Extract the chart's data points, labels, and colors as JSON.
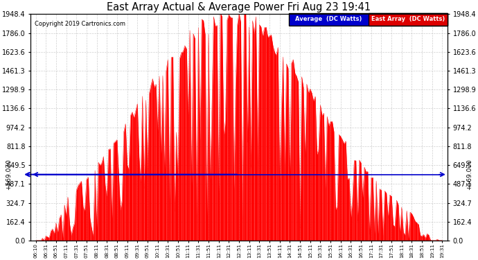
{
  "title": "East Array Actual & Average Power Fri Aug 23 19:41",
  "copyright": "Copyright 2019 Cartronics.com",
  "legend_labels": [
    "Average  (DC Watts)",
    "East Array  (DC Watts)"
  ],
  "legend_colors": [
    "#0000cc",
    "#dd0000"
  ],
  "average_value": 569.07,
  "y_ticks": [
    0.0,
    162.4,
    324.7,
    487.1,
    649.5,
    811.8,
    974.2,
    1136.6,
    1298.9,
    1461.3,
    1623.6,
    1786.0,
    1948.4
  ],
  "y_max": 1948.4,
  "background_color": "#ffffff",
  "grid_color": "#bbbbbb",
  "bar_color": "#ff0000",
  "avg_line_color": "#0000cc",
  "x_labels": [
    "06:10",
    "06:31",
    "06:51",
    "07:11",
    "07:31",
    "07:51",
    "08:11",
    "08:31",
    "08:51",
    "09:11",
    "09:31",
    "09:51",
    "10:11",
    "10:31",
    "10:51",
    "11:11",
    "11:31",
    "11:51",
    "12:11",
    "12:31",
    "12:51",
    "13:11",
    "13:31",
    "13:51",
    "14:11",
    "14:31",
    "14:51",
    "15:11",
    "15:31",
    "15:51",
    "16:11",
    "16:31",
    "16:51",
    "17:11",
    "17:31",
    "17:51",
    "18:11",
    "18:31",
    "18:51",
    "19:11",
    "19:31"
  ],
  "avg_label": "+569.070"
}
